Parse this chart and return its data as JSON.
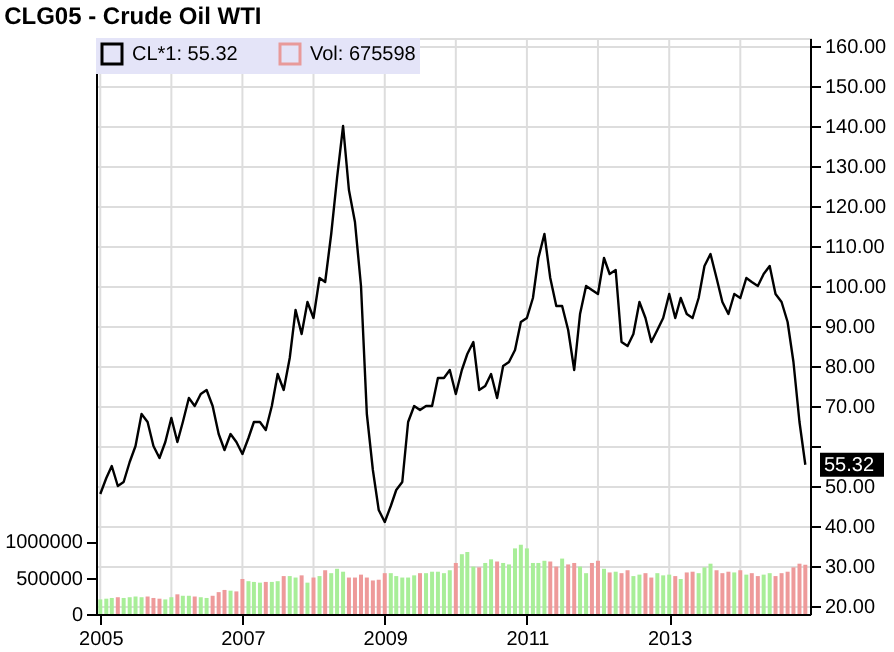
{
  "chart_data": {
    "type": "line",
    "title": "CLG05 - Crude Oil WTI",
    "x": [
      "2005-01",
      "2005-02",
      "2005-03",
      "2005-04",
      "2005-05",
      "2005-06",
      "2005-07",
      "2005-08",
      "2005-09",
      "2005-10",
      "2005-11",
      "2005-12",
      "2006-01",
      "2006-02",
      "2006-03",
      "2006-04",
      "2006-05",
      "2006-06",
      "2006-07",
      "2006-08",
      "2006-09",
      "2006-10",
      "2006-11",
      "2006-12",
      "2007-01",
      "2007-02",
      "2007-03",
      "2007-04",
      "2007-05",
      "2007-06",
      "2007-07",
      "2007-08",
      "2007-09",
      "2007-10",
      "2007-11",
      "2007-12",
      "2008-01",
      "2008-02",
      "2008-03",
      "2008-04",
      "2008-05",
      "2008-06",
      "2008-07",
      "2008-08",
      "2008-09",
      "2008-10",
      "2008-11",
      "2008-12",
      "2009-01",
      "2009-02",
      "2009-03",
      "2009-04",
      "2009-05",
      "2009-06",
      "2009-07",
      "2009-08",
      "2009-09",
      "2009-10",
      "2009-11",
      "2009-12",
      "2010-01",
      "2010-02",
      "2010-03",
      "2010-04",
      "2010-05",
      "2010-06",
      "2010-07",
      "2010-08",
      "2010-09",
      "2010-10",
      "2010-11",
      "2010-12",
      "2011-01",
      "2011-02",
      "2011-03",
      "2011-04",
      "2011-05",
      "2011-06",
      "2011-07",
      "2011-08",
      "2011-09",
      "2011-10",
      "2011-11",
      "2011-12",
      "2012-01",
      "2012-02",
      "2012-03",
      "2012-04",
      "2012-05",
      "2012-06",
      "2012-07",
      "2012-08",
      "2012-09",
      "2012-10",
      "2012-11",
      "2012-12",
      "2013-01",
      "2013-02",
      "2013-03",
      "2013-04",
      "2013-05",
      "2013-06",
      "2013-07",
      "2013-08",
      "2013-09",
      "2013-10",
      "2013-11",
      "2013-12",
      "2014-01",
      "2014-02",
      "2014-03",
      "2014-04",
      "2014-05",
      "2014-06",
      "2014-07",
      "2014-08",
      "2014-09",
      "2014-10",
      "2014-11",
      "2014-12"
    ],
    "series": [
      {
        "name": "CL*1: 55.32",
        "axis": "y2",
        "color": "#000000",
        "values": [
          48,
          52,
          55,
          50,
          51,
          56,
          60,
          68,
          66,
          60,
          57,
          61,
          67,
          61,
          66,
          72,
          70,
          73,
          74,
          70,
          63,
          59,
          63,
          61,
          58,
          62,
          66,
          66,
          64,
          70,
          78,
          74,
          82,
          94,
          88,
          96,
          92,
          102,
          101,
          113,
          127,
          140,
          124,
          116,
          100,
          68,
          54,
          44,
          41,
          45,
          49,
          51,
          66,
          70,
          69,
          70,
          70,
          77,
          77,
          79,
          73,
          79,
          83,
          86,
          74,
          75,
          78,
          72,
          80,
          81,
          84,
          91,
          92,
          97,
          107,
          113,
          102,
          95,
          95,
          89,
          79,
          93,
          100,
          99,
          98,
          107,
          103,
          104,
          86,
          85,
          88,
          96,
          92,
          86,
          89,
          92,
          98,
          92,
          97,
          93,
          92,
          97,
          105,
          108,
          102,
          96,
          93,
          98,
          97,
          102,
          101,
          100,
          103,
          105,
          98,
          96,
          91,
          81,
          66,
          55.32
        ]
      },
      {
        "name": "Vol: 675598",
        "type": "bar",
        "color": "#e89a9a",
        "values": [
          200000,
          210000,
          220000,
          230000,
          220000,
          230000,
          240000,
          230000,
          240000,
          220000,
          210000,
          200000,
          230000,
          270000,
          250000,
          250000,
          240000,
          230000,
          220000,
          250000,
          300000,
          330000,
          320000,
          310000,
          480000,
          450000,
          440000,
          430000,
          440000,
          440000,
          450000,
          520000,
          520000,
          500000,
          530000,
          430000,
          500000,
          520000,
          600000,
          560000,
          620000,
          580000,
          500000,
          500000,
          540000,
          500000,
          460000,
          470000,
          560000,
          560000,
          520000,
          500000,
          500000,
          530000,
          560000,
          560000,
          580000,
          580000,
          560000,
          600000,
          700000,
          820000,
          850000,
          650000,
          640000,
          700000,
          750000,
          720000,
          700000,
          680000,
          900000,
          950000,
          900000,
          700000,
          700000,
          730000,
          720000,
          650000,
          760000,
          680000,
          700000,
          650000,
          560000,
          700000,
          730000,
          620000,
          570000,
          580000,
          560000,
          600000,
          520000,
          540000,
          560000,
          500000,
          560000,
          530000,
          540000,
          520000,
          480000,
          570000,
          580000,
          560000,
          640000,
          690000,
          600000,
          560000,
          580000,
          570000,
          600000,
          540000,
          560000,
          520000,
          540000,
          560000,
          520000,
          560000,
          580000,
          640000,
          690000,
          675598
        ],
        "colors": [
          "#a8ee98",
          "#a8ee98",
          "#a8ee98",
          "#ee9a9a",
          "#a8ee98",
          "#a8ee98",
          "#a8ee98",
          "#a8ee98",
          "#ee9a9a",
          "#ee9a9a",
          "#ee9a9a",
          "#a8ee98",
          "#a8ee98",
          "#ee9a9a",
          "#a8ee98",
          "#a8ee98",
          "#ee9a9a",
          "#a8ee98",
          "#a8ee98",
          "#ee9a9a",
          "#ee9a9a",
          "#ee9a9a",
          "#a8ee98",
          "#ee9a9a",
          "#ee9a9a",
          "#a8ee98",
          "#a8ee98",
          "#a8ee98",
          "#ee9a9a",
          "#a8ee98",
          "#a8ee98",
          "#ee9a9a",
          "#a8ee98",
          "#a8ee98",
          "#ee9a9a",
          "#a8ee98",
          "#ee9a9a",
          "#a8ee98",
          "#ee9a9a",
          "#a8ee98",
          "#a8ee98",
          "#a8ee98",
          "#ee9a9a",
          "#ee9a9a",
          "#ee9a9a",
          "#ee9a9a",
          "#ee9a9a",
          "#ee9a9a",
          "#ee9a9a",
          "#a8ee98",
          "#a8ee98",
          "#a8ee98",
          "#a8ee98",
          "#a8ee98",
          "#ee9a9a",
          "#a8ee98",
          "#a8ee98",
          "#a8ee98",
          "#a8ee98",
          "#a8ee98",
          "#ee9a9a",
          "#a8ee98",
          "#a8ee98",
          "#a8ee98",
          "#ee9a9a",
          "#a8ee98",
          "#a8ee98",
          "#ee9a9a",
          "#a8ee98",
          "#a8ee98",
          "#a8ee98",
          "#a8ee98",
          "#a8ee98",
          "#a8ee98",
          "#a8ee98",
          "#a8ee98",
          "#ee9a9a",
          "#ee9a9a",
          "#a8ee98",
          "#ee9a9a",
          "#ee9a9a",
          "#a8ee98",
          "#a8ee98",
          "#ee9a9a",
          "#ee9a9a",
          "#a8ee98",
          "#ee9a9a",
          "#a8ee98",
          "#ee9a9a",
          "#ee9a9a",
          "#a8ee98",
          "#a8ee98",
          "#ee9a9a",
          "#ee9a9a",
          "#a8ee98",
          "#a8ee98",
          "#a8ee98",
          "#ee9a9a",
          "#a8ee98",
          "#ee9a9a",
          "#ee9a9a",
          "#a8ee98",
          "#a8ee98",
          "#a8ee98",
          "#ee9a9a",
          "#ee9a9a",
          "#ee9a9a",
          "#a8ee98",
          "#ee9a9a",
          "#a8ee98",
          "#ee9a9a",
          "#ee9a9a",
          "#a8ee98",
          "#a8ee98",
          "#ee9a9a",
          "#ee9a9a",
          "#ee9a9a",
          "#ee9a9a",
          "#ee9a9a",
          "#ee9a9a"
        ]
      }
    ],
    "xlim": [
      "2004-12-10",
      "2014-12-25"
    ],
    "xticks": [
      {
        "value": "2005",
        "label": "2005"
      },
      {
        "value": "2006",
        "label": null
      },
      {
        "value": "2007",
        "label": "2007"
      },
      {
        "value": "2008",
        "label": null
      },
      {
        "value": "2009",
        "label": "2009"
      },
      {
        "value": "2010",
        "label": null
      },
      {
        "value": "2011",
        "label": "2011"
      },
      {
        "value": "2012",
        "label": null
      },
      {
        "value": "2013",
        "label": "2013"
      },
      {
        "value": "2014",
        "label": null
      }
    ],
    "y2lim": [
      18,
      162
    ],
    "y2ticks": [
      {
        "value": 20,
        "label": "20.00"
      },
      {
        "value": 30,
        "label": "30.00"
      },
      {
        "value": 40,
        "label": "40.00"
      },
      {
        "value": 50,
        "label": "50.00"
      },
      {
        "value": 60,
        "label": null
      },
      {
        "value": 70,
        "label": "70.00"
      },
      {
        "value": 80,
        "label": "80.00"
      },
      {
        "value": 90,
        "label": "90.00"
      },
      {
        "value": 100,
        "label": "100.00"
      },
      {
        "value": 110,
        "label": "110.00"
      },
      {
        "value": 120,
        "label": "120.00"
      },
      {
        "value": 130,
        "label": "130.00"
      },
      {
        "value": 140,
        "label": "140.00"
      },
      {
        "value": 150,
        "label": "150.00"
      },
      {
        "value": 160,
        "label": "160.00"
      }
    ],
    "ylim": [
      0,
      7900000
    ],
    "yticks": [
      0,
      500000,
      1000000
    ],
    "annotations": [
      "55.32"
    ],
    "grid": true,
    "legend": "top left"
  }
}
